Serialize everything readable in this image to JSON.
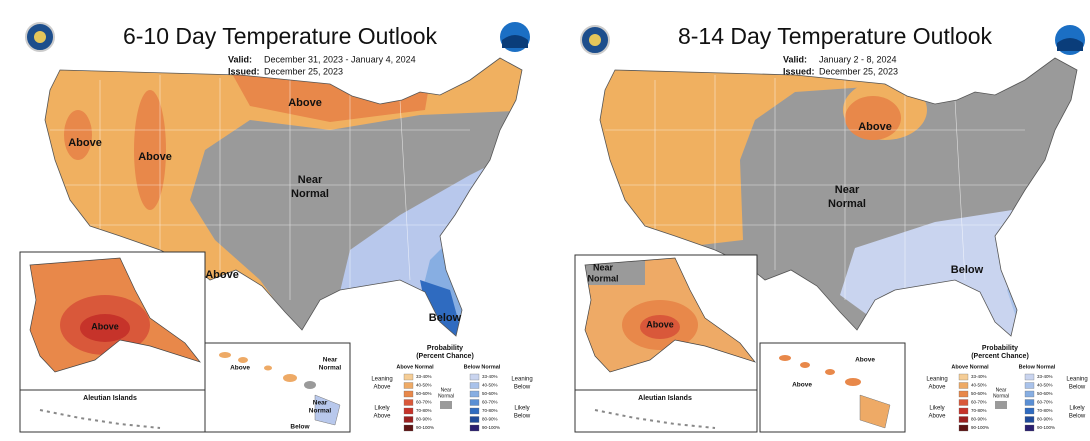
{
  "panels": [
    {
      "title": "6-10 Day Temperature Outlook",
      "valid_label": "Valid:",
      "valid": "December 31, 2023 - January 4, 2024",
      "issued_label": "Issued:",
      "issued": "December 25, 2023",
      "map_labels": [
        [
          "Above"
        ],
        [
          "Above"
        ],
        [
          "Above"
        ],
        [
          "Near",
          "Normal"
        ],
        [
          "Above"
        ],
        [
          "Below"
        ]
      ],
      "alaska_labels": [
        [
          "Above"
        ]
      ],
      "aleutian": "Aleutian Islands",
      "hawaii_labels": [
        [
          "Above"
        ],
        [
          "Near",
          "Normal"
        ],
        [
          "Near",
          "Normal"
        ],
        [
          "Below"
        ]
      ],
      "legend": {
        "title": [
          "Probability",
          "(Percent Chance)"
        ],
        "above_title": "Above Normal",
        "below_title": "Below Normal",
        "ranges": [
          "33-40%",
          "40-50%",
          "50-60%",
          "60-70%",
          "70-80%",
          "80-90%",
          "90-100%"
        ],
        "above_colors": [
          "#f5cd96",
          "#eeaa66",
          "#e8884a",
          "#d9583a",
          "#c6332a",
          "#9b2020",
          "#5e1414"
        ],
        "below_colors": [
          "#c9d4ef",
          "#a9c2ea",
          "#87aee2",
          "#5a8fd4",
          "#2f6bc0",
          "#1f4a9a",
          "#2a1f70"
        ],
        "leaning_above": [
          "Leaning",
          "Above"
        ],
        "likely_above": [
          "Likely",
          "Above"
        ],
        "near_normal": [
          "Near",
          "Normal"
        ],
        "near_color": "#9a9a9a",
        "leaning_below": [
          "Leaning",
          "Below"
        ],
        "likely_below": [
          "Likely",
          "Below"
        ]
      }
    },
    {
      "title": "8-14 Day Temperature Outlook",
      "valid_label": "Valid:",
      "valid": "January 2 - 8, 2024",
      "issued_label": "Issued:",
      "issued": "December 25, 2023",
      "map_labels": [
        [
          "Above"
        ],
        [
          "Near",
          "Normal"
        ],
        [
          "Below"
        ]
      ],
      "alaska_labels": [
        [
          "Near",
          "Normal"
        ],
        [
          "Above"
        ]
      ],
      "aleutian": "Aleutian Islands",
      "hawaii_labels": [
        [
          "Above"
        ],
        [
          "Above"
        ]
      ],
      "legend": {
        "title": [
          "Probability",
          "(Percent Chance)"
        ],
        "above_title": "Above Normal",
        "below_title": "Below Normal",
        "ranges": [
          "33-40%",
          "40-50%",
          "50-60%",
          "60-70%",
          "70-80%",
          "80-90%",
          "90-100%"
        ],
        "above_colors": [
          "#f5cd96",
          "#eeaa66",
          "#e8884a",
          "#d9583a",
          "#c6332a",
          "#9b2020",
          "#5e1414"
        ],
        "below_colors": [
          "#c9d4ef",
          "#a9c2ea",
          "#87aee2",
          "#5a8fd4",
          "#2f6bc0",
          "#1f4a9a",
          "#2a1f70"
        ],
        "leaning_above": [
          "Leaning",
          "Above"
        ],
        "likely_above": [
          "Likely",
          "Above"
        ],
        "near_normal": [
          "Near",
          "Normal"
        ],
        "near_color": "#9a9a9a",
        "leaning_below": [
          "Leaning",
          "Below"
        ],
        "likely_below": [
          "Likely",
          "Below"
        ]
      }
    }
  ]
}
